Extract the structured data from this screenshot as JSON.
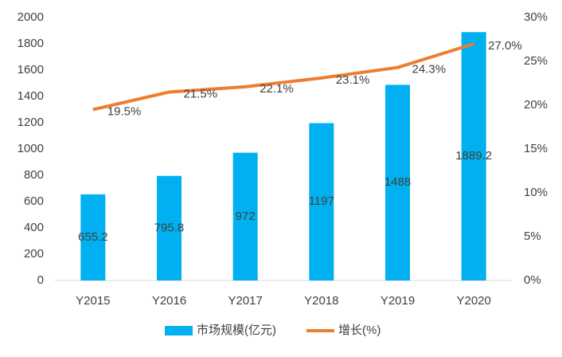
{
  "chart_data": {
    "type": "bar",
    "categories": [
      "Y2015",
      "Y2016",
      "Y2017",
      "Y2018",
      "Y2019",
      "Y2020"
    ],
    "series": [
      {
        "name": "市场规模(亿元)",
        "type": "bar",
        "color": "#00b0f0",
        "values": [
          655.2,
          795.8,
          972,
          1197,
          1488,
          1889.2
        ]
      },
      {
        "name": "增长(%)",
        "type": "line",
        "axis": "y2",
        "color": "#ed7d31",
        "values": [
          19.5,
          21.5,
          22.1,
          23.1,
          24.3,
          27.0
        ],
        "value_labels": [
          "19.5%",
          "21.5%",
          "22.1%",
          "23.1%",
          "24.3%",
          "27.0%"
        ]
      }
    ],
    "ylim": [
      0,
      2000
    ],
    "yticks": [
      0,
      200,
      400,
      600,
      800,
      1000,
      1200,
      1400,
      1600,
      1800,
      2000
    ],
    "y2lim": [
      0,
      30
    ],
    "y2ticks": [
      {
        "value": 0,
        "label": "0%"
      },
      {
        "value": 5,
        "label": "5%"
      },
      {
        "value": 10,
        "label": "10%"
      },
      {
        "value": 15,
        "label": "15%"
      },
      {
        "value": 20,
        "label": "20%"
      },
      {
        "value": 25,
        "label": "25%"
      },
      {
        "value": 30,
        "label": "30%"
      }
    ],
    "grid": false,
    "legend": "bottom"
  }
}
